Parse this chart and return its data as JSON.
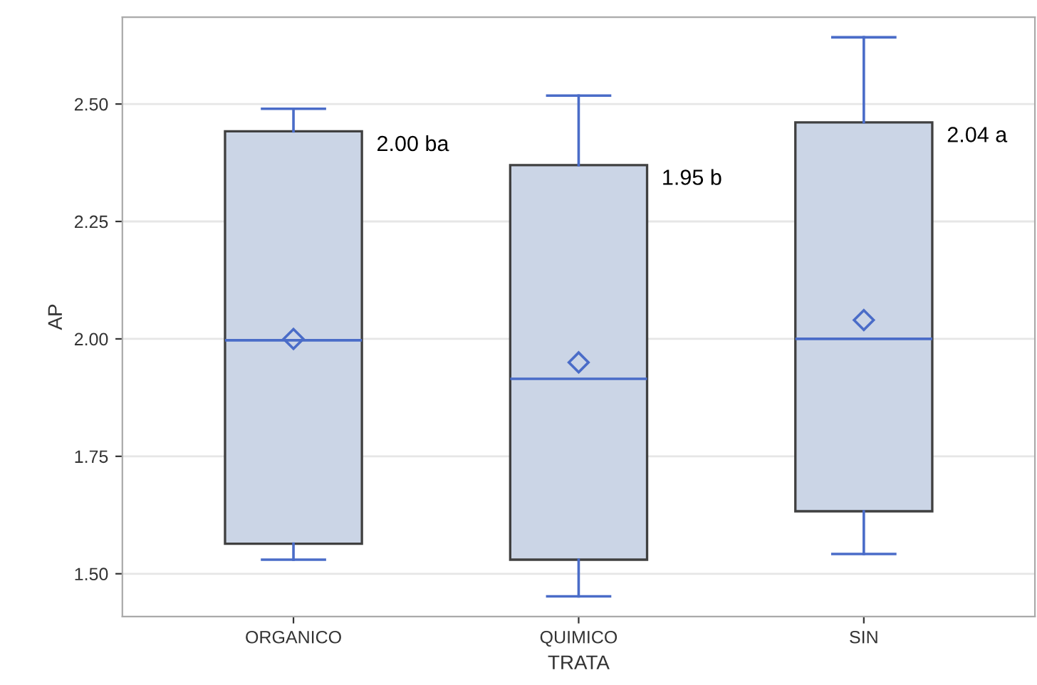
{
  "chart_data": {
    "type": "box",
    "xlabel": "TRATA",
    "ylabel": "AP",
    "categories": [
      "ORGANICO",
      "QUIMICO",
      "SIN"
    ],
    "boxes": [
      {
        "low": 1.53,
        "q1": 1.564,
        "median": 1.997,
        "q3": 2.442,
        "high": 2.49,
        "mean": 2.0
      },
      {
        "low": 1.452,
        "q1": 1.53,
        "median": 1.915,
        "q3": 2.37,
        "high": 2.518,
        "mean": 1.95
      },
      {
        "low": 1.542,
        "q1": 1.633,
        "median": 2.0,
        "q3": 2.461,
        "high": 2.642,
        "mean": 2.04
      }
    ],
    "color": "#cbd5e6",
    "ylim": [
      1.409,
      2.685
    ],
    "yticks": [
      {
        "value": 1.5,
        "label": "1.50"
      },
      {
        "value": 1.75,
        "label": "1.75"
      },
      {
        "value": 2.0,
        "label": "2.00"
      },
      {
        "value": 2.25,
        "label": "2.25"
      },
      {
        "value": 2.5,
        "label": "2.50"
      }
    ],
    "grid": "y",
    "marker": "diamond",
    "annotations": [
      "2.00 ba",
      "1.95 b",
      "2.04 a"
    ]
  }
}
